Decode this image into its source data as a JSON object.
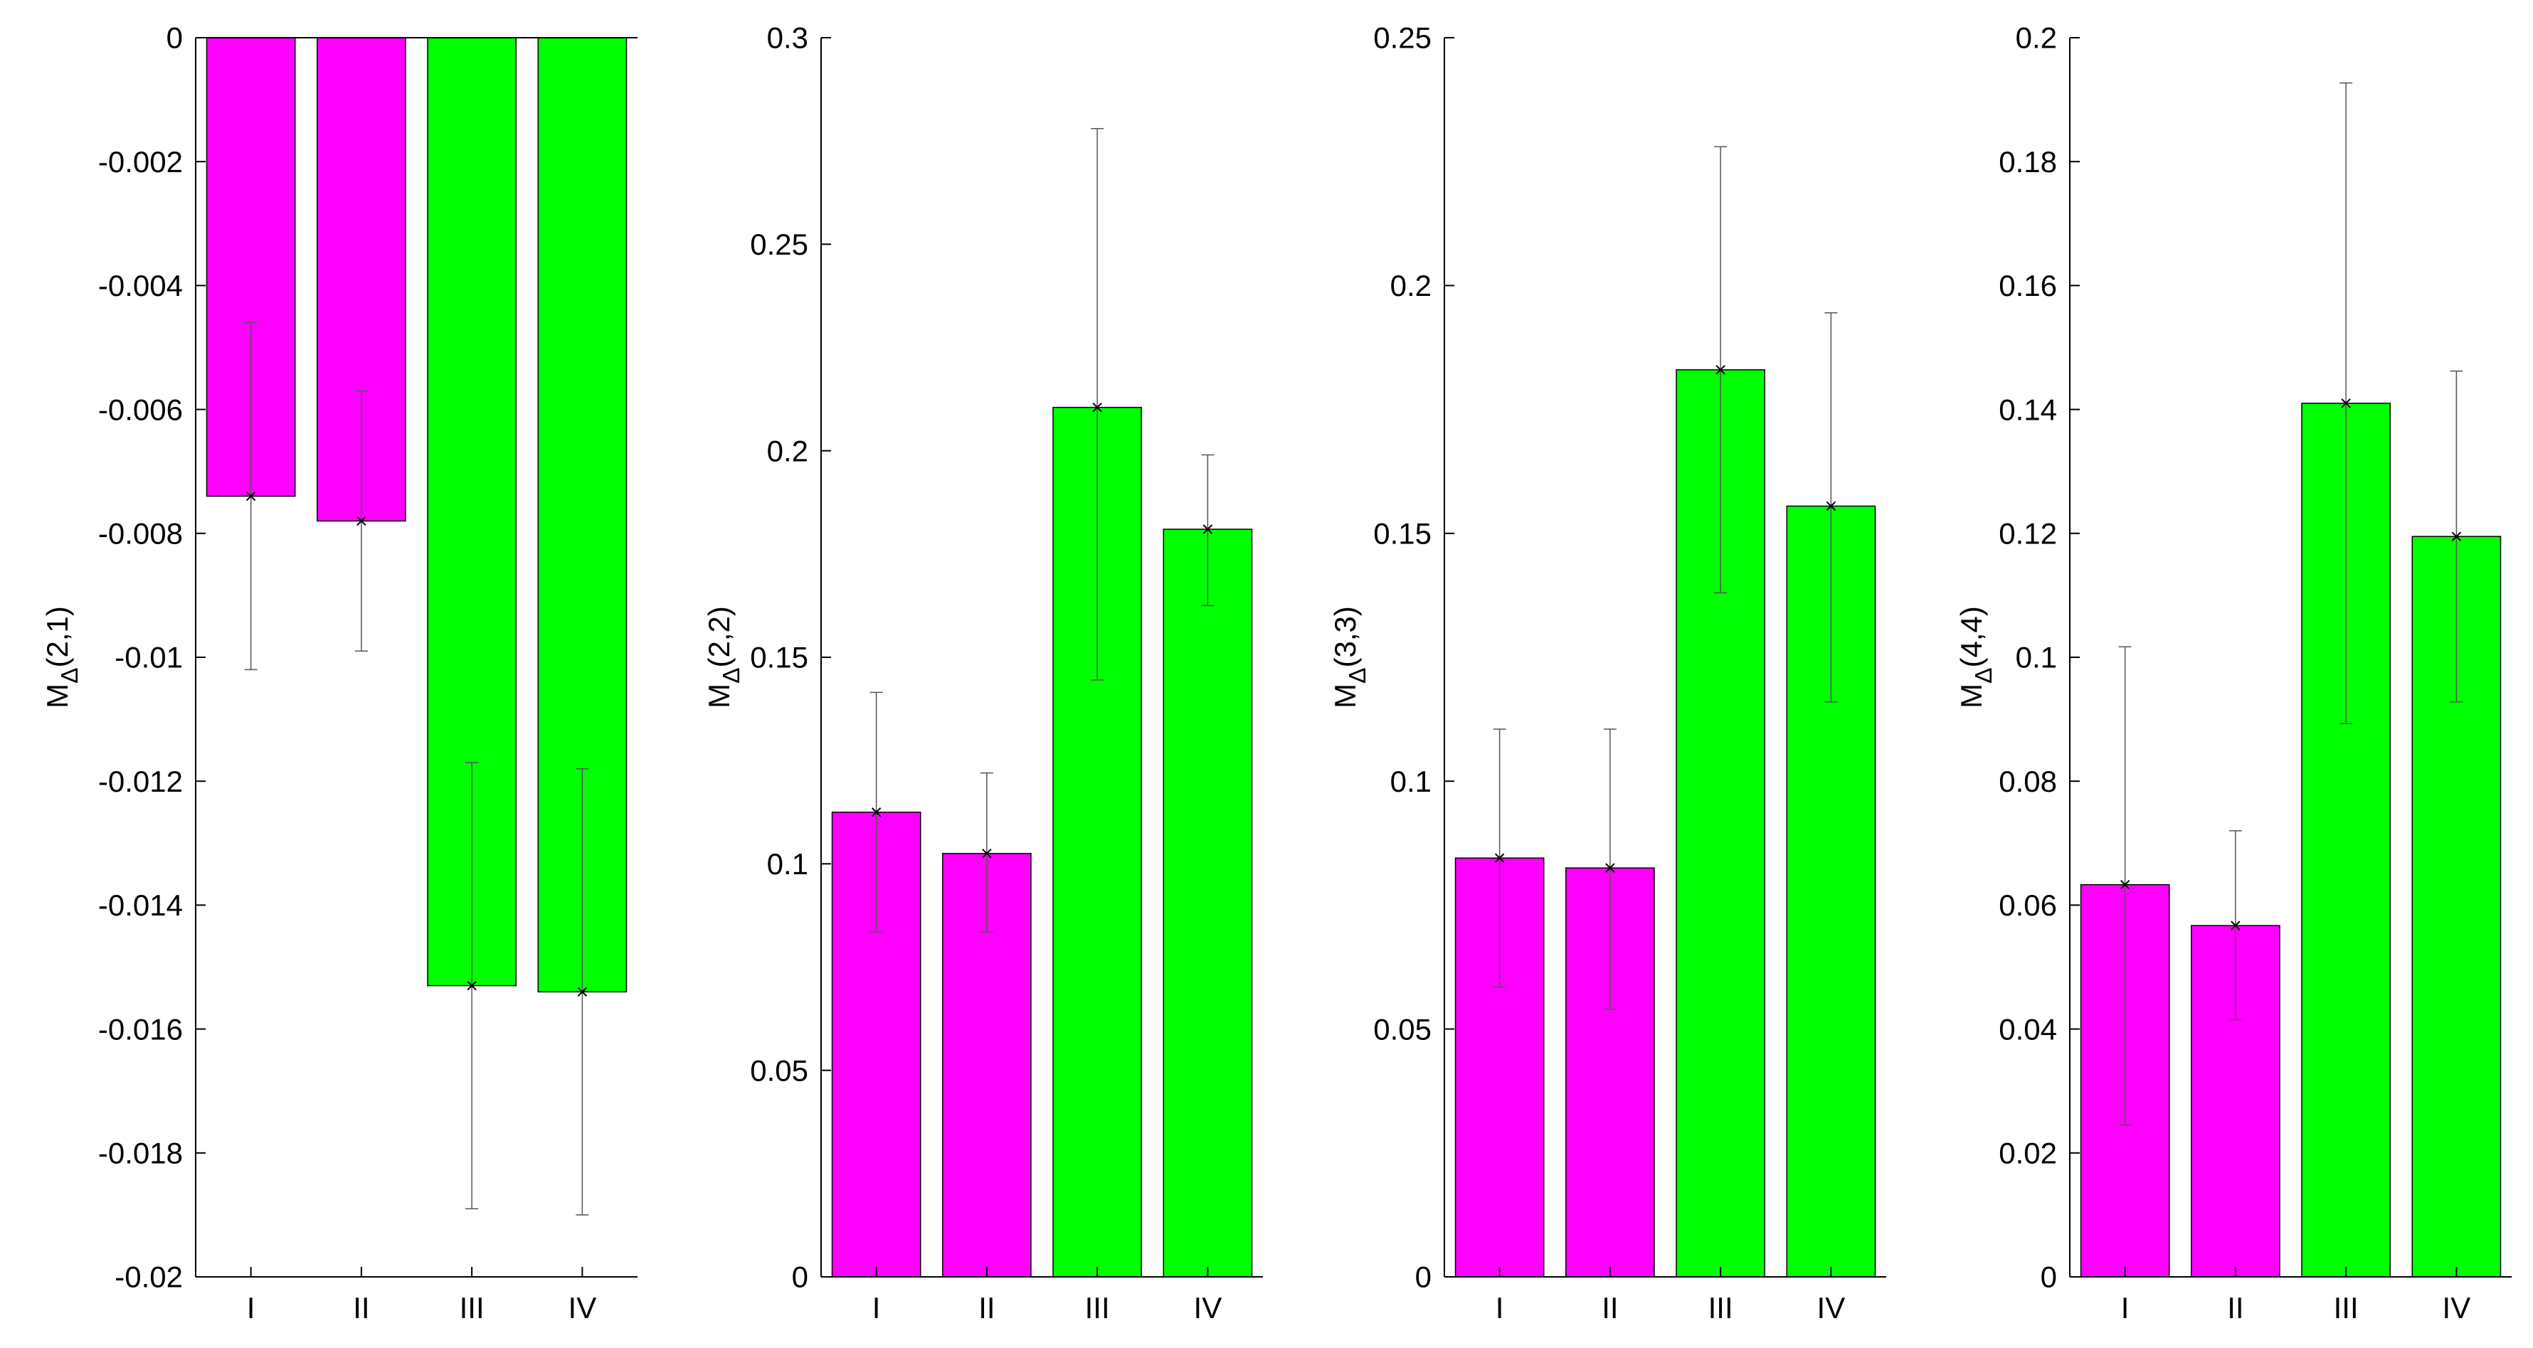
{
  "figure": {
    "colors": {
      "magenta": "#ff00ff",
      "green": "#00ff00",
      "axis": "#000000",
      "errorbar": "#555555"
    },
    "categories": [
      "I",
      "II",
      "III",
      "IV"
    ],
    "category_colors": [
      "magenta",
      "magenta",
      "green",
      "green"
    ]
  },
  "chart_data": [
    {
      "type": "bar",
      "ylabel_main": "M",
      "ylabel_sub": "Δ",
      "ylabel_args": "(2,1)",
      "categories": [
        "I",
        "II",
        "III",
        "IV"
      ],
      "values": [
        -0.0074,
        -0.0078,
        -0.0153,
        -0.0154
      ],
      "err_low": [
        -0.0102,
        -0.0099,
        -0.0189,
        -0.019
      ],
      "err_high": [
        -0.0046,
        -0.0057,
        -0.0117,
        -0.0118
      ],
      "ylim": [
        -0.02,
        0
      ],
      "yticks": [
        0,
        -0.002,
        -0.004,
        -0.006,
        -0.008,
        -0.01,
        -0.012,
        -0.014,
        -0.016,
        -0.018,
        -0.02
      ],
      "ytick_labels": [
        "0",
        "-0.002",
        "-0.004",
        "-0.006",
        "-0.008",
        "-0.01",
        "-0.012",
        "-0.014",
        "-0.016",
        "-0.018",
        "-0.02"
      ],
      "grid": false
    },
    {
      "type": "bar",
      "ylabel_main": "M",
      "ylabel_sub": "Δ",
      "ylabel_args": "(2,2)",
      "categories": [
        "I",
        "II",
        "III",
        "IV"
      ],
      "values": [
        0.1125,
        0.1025,
        0.2105,
        0.181
      ],
      "err_low": [
        0.0835,
        0.0835,
        0.1445,
        0.1625
      ],
      "err_high": [
        0.1415,
        0.122,
        0.278,
        0.199
      ],
      "ylim": [
        0,
        0.3
      ],
      "yticks": [
        0,
        0.05,
        0.1,
        0.15,
        0.2,
        0.25,
        0.3
      ],
      "ytick_labels": [
        "0",
        "0.05",
        "0.1",
        "0.15",
        "0.2",
        "0.25",
        "0.3"
      ],
      "grid": false
    },
    {
      "type": "bar",
      "ylabel_main": "M",
      "ylabel_sub": "Δ",
      "ylabel_args": "(3,3)",
      "categories": [
        "I",
        "II",
        "III",
        "IV"
      ],
      "values": [
        0.0845,
        0.0825,
        0.183,
        0.1555
      ],
      "err_low": [
        0.0585,
        0.054,
        0.138,
        0.116
      ],
      "err_high": [
        0.1105,
        0.1105,
        0.228,
        0.1945
      ],
      "ylim": [
        0,
        0.25
      ],
      "yticks": [
        0,
        0.05,
        0.1,
        0.15,
        0.2,
        0.25
      ],
      "ytick_labels": [
        "0",
        "0.05",
        "0.1",
        "0.15",
        "0.2",
        "0.25"
      ],
      "grid": false
    },
    {
      "type": "bar",
      "ylabel_main": "M",
      "ylabel_sub": "Δ",
      "ylabel_args": "(4,4)",
      "categories": [
        "I",
        "II",
        "III",
        "IV"
      ],
      "values": [
        0.0633,
        0.0567,
        0.141,
        0.1195
      ],
      "err_low": [
        0.0245,
        0.0415,
        0.0893,
        0.0928
      ],
      "err_high": [
        0.1017,
        0.072,
        0.1927,
        0.1462
      ],
      "ylim": [
        0,
        0.2
      ],
      "yticks": [
        0,
        0.02,
        0.04,
        0.06,
        0.08,
        0.1,
        0.12,
        0.14,
        0.16,
        0.18,
        0.2
      ],
      "ytick_labels": [
        "0",
        "0.02",
        "0.04",
        "0.06",
        "0.08",
        "0.1",
        "0.12",
        "0.14",
        "0.16",
        "0.18",
        "0.2"
      ],
      "grid": false
    }
  ]
}
